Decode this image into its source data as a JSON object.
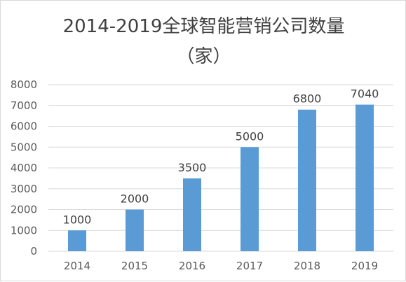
{
  "chart_data": {
    "type": "bar",
    "title_lines": [
      "2014-2019全球智能营销公司数量",
      "（家）"
    ],
    "categories": [
      "2014",
      "2015",
      "2016",
      "2017",
      "2018",
      "2019"
    ],
    "values": [
      1000,
      2000,
      3500,
      5000,
      6800,
      7040
    ],
    "data_labels": [
      "1000",
      "2000",
      "3500",
      "5000",
      "6800",
      "7040"
    ],
    "y_ticks": [
      "0",
      "1000",
      "2000",
      "3000",
      "4000",
      "5000",
      "6000",
      "7000",
      "8000"
    ],
    "ylim": [
      0,
      8000
    ],
    "grid": true,
    "legend": "none",
    "bar_color": "#5b9bd5",
    "grid_color": "#d9d9d9",
    "text_color": "#595959"
  }
}
